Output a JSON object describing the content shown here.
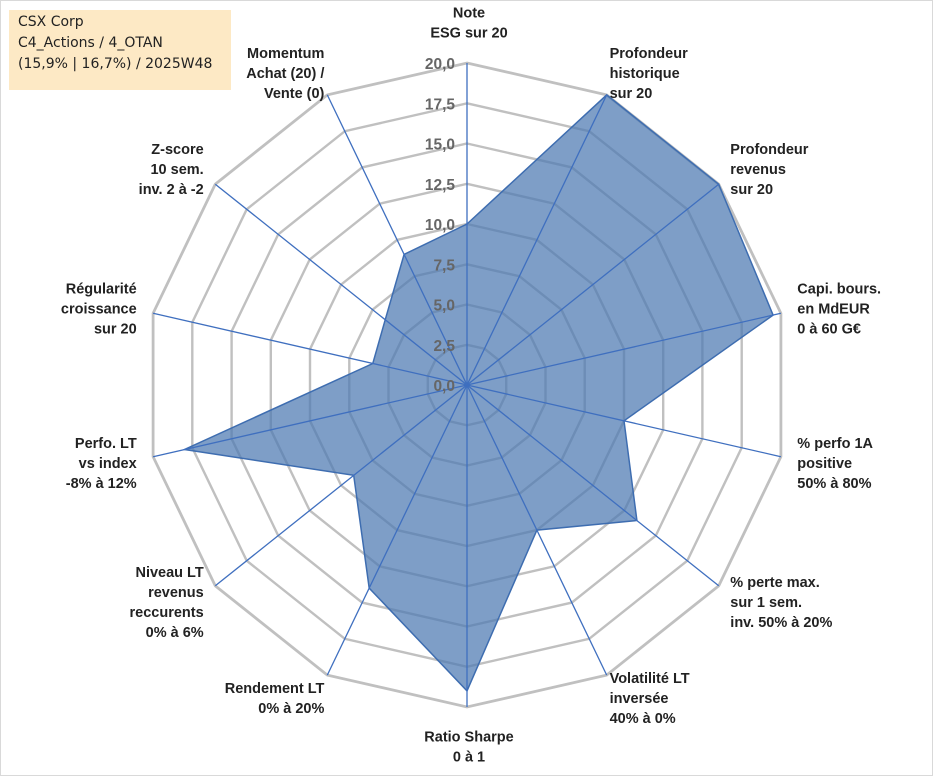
{
  "info": {
    "company": "CSX Corp",
    "category": "C4_Actions / 4_OTAN",
    "details": "(15,9% | 16,7%) / 2025W48"
  },
  "colors": {
    "fill": "#4c79b1",
    "stroke": "#3e6db0",
    "grid": "#c0c0c0",
    "spoke": "#3f6fbf",
    "info_bg": "#fde9c5"
  },
  "chart_data": {
    "type": "radar",
    "range": [
      0,
      20
    ],
    "ticks": [
      "0,0",
      "2,5",
      "5,0",
      "7,5",
      "10,0",
      "12,5",
      "15,0",
      "17,5",
      "20,0"
    ],
    "axes": [
      [
        "Note",
        "ESG sur 20"
      ],
      [
        "Profondeur",
        "historique",
        "sur 20"
      ],
      [
        "Profondeur",
        "revenus",
        "sur 20"
      ],
      [
        "Capi. bours.",
        "en MdEUR",
        "0 à 60 G€"
      ],
      [
        "% perfo 1A",
        "positive",
        "50% à 80%"
      ],
      [
        "% perte max.",
        "sur 1 sem.",
        "inv. 50% à 20%"
      ],
      [
        "Volatilité LT",
        "inversée",
        "40% à 0%"
      ],
      [
        "Ratio Sharpe",
        "0 à 1"
      ],
      [
        "Rendement LT",
        "0% à 20%"
      ],
      [
        "Niveau LT",
        "revenus",
        "reccurents",
        "0% à 6%"
      ],
      [
        "Perfo. LT",
        "vs index",
        "-8% à 12%"
      ],
      [
        "Régularité",
        "croissance",
        "sur 20"
      ],
      [
        "Z-score",
        "10 sem.",
        "inv. 2 à -2"
      ],
      [
        "Momentum",
        "Achat (20) /",
        "Vente (0)"
      ]
    ],
    "series": [
      {
        "name": "CSX Corp",
        "values": [
          10.0,
          20.0,
          20.0,
          19.5,
          10.0,
          13.5,
          10.0,
          19.0,
          14.0,
          9.0,
          18.0,
          6.0,
          6.5,
          9.0
        ]
      }
    ]
  }
}
